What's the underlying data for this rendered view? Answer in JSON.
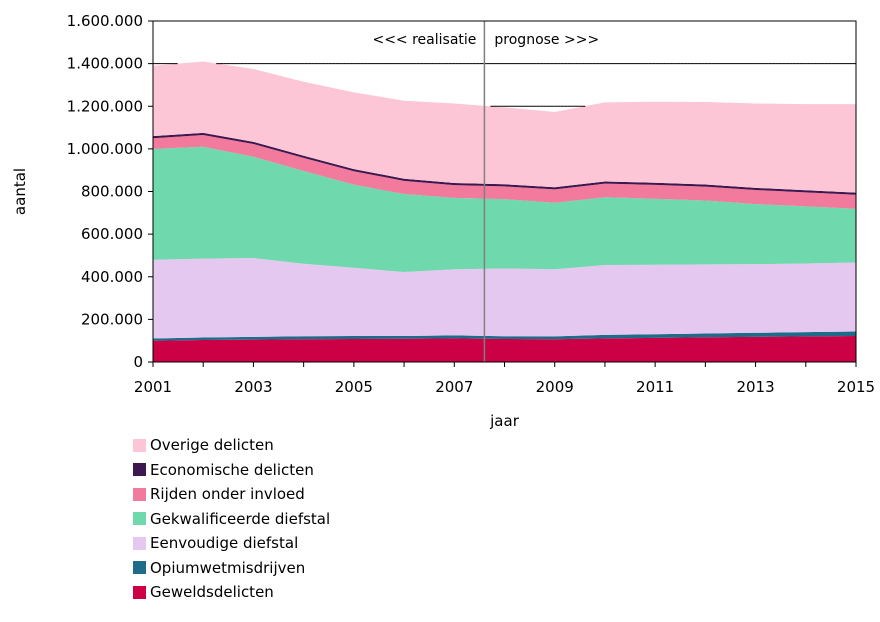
{
  "chart_data": {
    "type": "area",
    "stacked": true,
    "title": "",
    "xlabel": "jaar",
    "ylabel": "aantal",
    "x": [
      2001,
      2002,
      2003,
      2004,
      2005,
      2006,
      2007,
      2008,
      2009,
      2010,
      2011,
      2012,
      2013,
      2014,
      2015
    ],
    "x_ticks": [
      "2001",
      "2003",
      "2005",
      "2007",
      "2009",
      "2011",
      "2013",
      "2015"
    ],
    "ylim": [
      0,
      1600000
    ],
    "y_ticks": [
      "0",
      "200.000",
      "400.000",
      "600.000",
      "800.000",
      "1.000.000",
      "1.200.000",
      "1.400.000",
      "1.600.000"
    ],
    "y_tick_values": [
      0,
      200000,
      400000,
      600000,
      800000,
      1000000,
      1200000,
      1400000,
      1600000
    ],
    "reference_lines": [
      1400000,
      1200000
    ],
    "divider_x": 2007.6,
    "annotations": {
      "left": "<<< realisatie",
      "right": "prognose >>>"
    },
    "legend_position": "bottom",
    "series": [
      {
        "name": "Geweldsdelicten",
        "color": "#cc0044",
        "values": [
          100000,
          103000,
          105000,
          107000,
          108000,
          109000,
          111000,
          108000,
          107000,
          111000,
          113000,
          116000,
          118000,
          120000,
          122000
        ]
      },
      {
        "name": "Opiumwetmisdrijven",
        "color": "#1e6b8a",
        "values": [
          10000,
          12000,
          13000,
          14000,
          14000,
          13000,
          14000,
          13000,
          13000,
          16000,
          17000,
          18000,
          19000,
          20000,
          21000
        ]
      },
      {
        "name": "Eenvoudige diefstal",
        "color": "#e4c8f0",
        "values": [
          370000,
          370000,
          370000,
          340000,
          320000,
          300000,
          310000,
          318000,
          315000,
          328000,
          326000,
          324000,
          322000,
          322000,
          324000
        ]
      },
      {
        "name": "Gekwalificeerde diefstal",
        "color": "#6fd8ac",
        "values": [
          520000,
          525000,
          475000,
          435000,
          390000,
          366000,
          335000,
          325000,
          312000,
          318000,
          310000,
          300000,
          282000,
          268000,
          252000
        ]
      },
      {
        "name": "Rijden onder invloed",
        "color": "#f27a9c",
        "values": [
          50000,
          55000,
          60000,
          62000,
          63000,
          62000,
          60000,
          60000,
          63000,
          64000,
          65000,
          65000,
          66000,
          66000,
          66000
        ]
      },
      {
        "name": "Economische delicten",
        "color": "#3d1750",
        "values": [
          10000,
          10000,
          10000,
          10000,
          10000,
          10000,
          10000,
          10000,
          10000,
          10000,
          10000,
          10000,
          10000,
          10000,
          10000
        ]
      },
      {
        "name": "Overige delicten",
        "color": "#fcc6d6",
        "values": [
          330000,
          335000,
          342000,
          347000,
          360000,
          366000,
          373000,
          361000,
          353000,
          371000,
          380000,
          387000,
          396000,
          404000,
          415000
        ]
      }
    ]
  }
}
